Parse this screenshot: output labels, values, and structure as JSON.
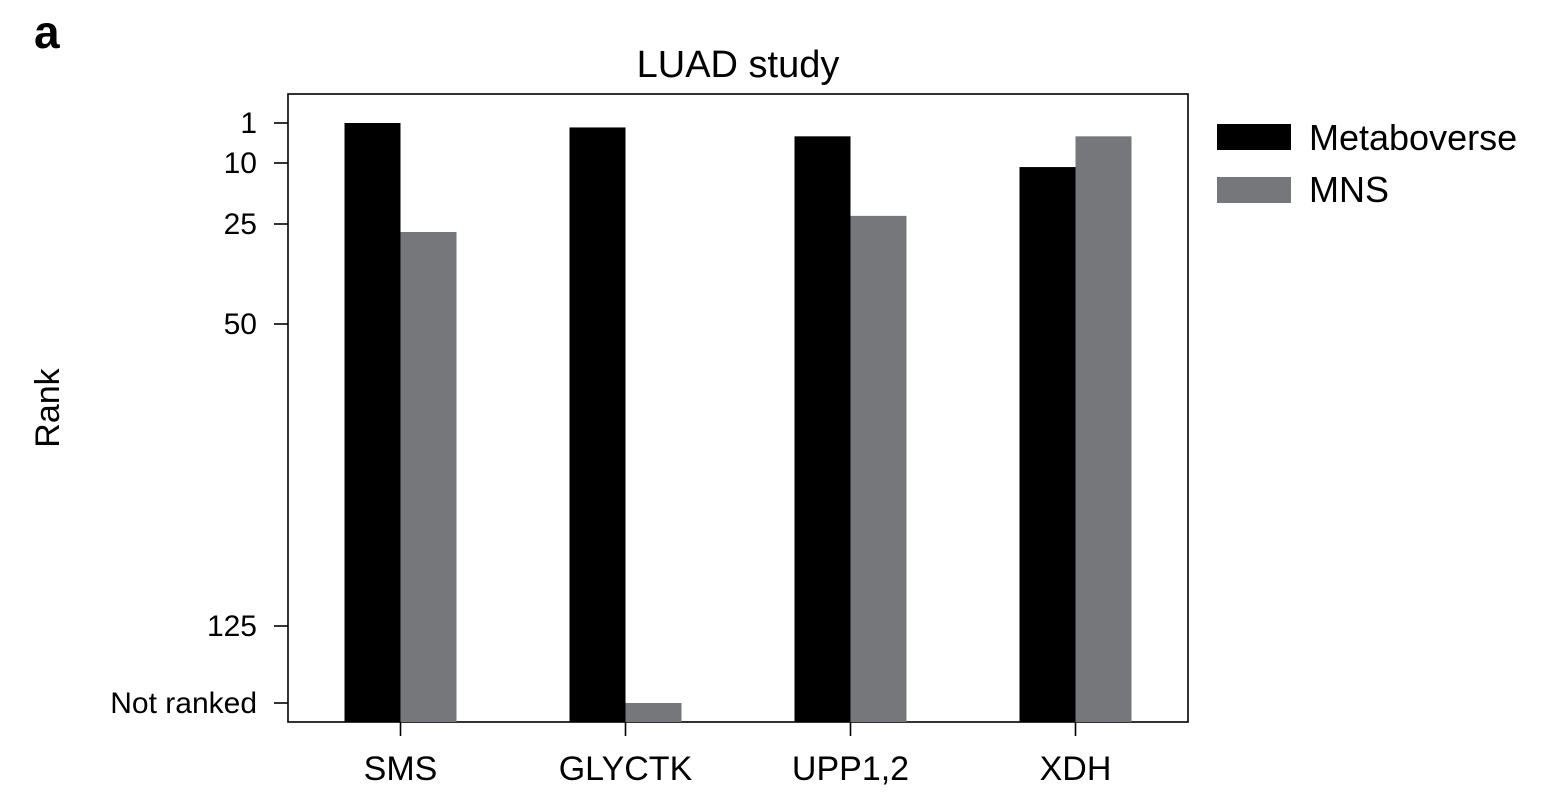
{
  "panel_label": "a",
  "colors": {
    "metaboverse": "#000000",
    "mns": "#76777a",
    "axis": "#000000",
    "background": "#ffffff"
  },
  "chart_data": {
    "type": "bar",
    "title": "LUAD study",
    "xlabel": "",
    "ylabel": "Rank",
    "y_axis_reversed": true,
    "y_ticks": [
      1,
      10,
      25,
      50,
      125,
      "Not ranked"
    ],
    "categories": [
      "SMS",
      "GLYCTK",
      "UPP1,2",
      "XDH"
    ],
    "series": [
      {
        "name": "Metaboverse",
        "values": [
          1,
          2,
          4,
          11
        ]
      },
      {
        "name": "MNS",
        "values": [
          27,
          "Not ranked",
          23,
          4
        ]
      }
    ],
    "legend_position": "right",
    "grid": false
  }
}
